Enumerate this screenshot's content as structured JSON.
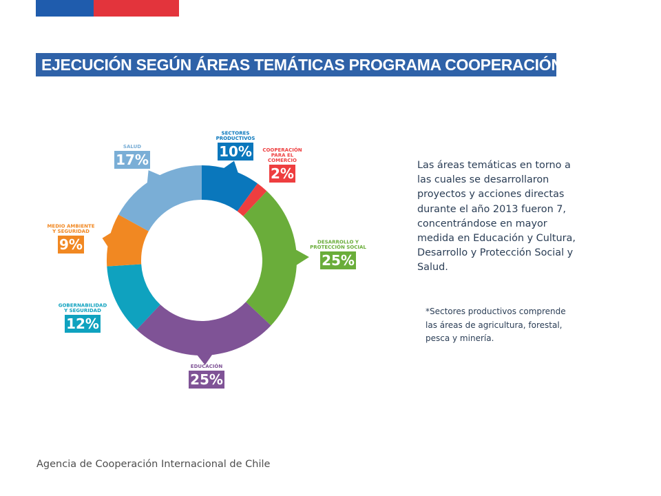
{
  "header": {
    "title": "EJECUCIÓN SEGÚN ÁREAS TEMÁTICAS PROGRAMA COOPERACIÓN SUR-SUR"
  },
  "colors": {
    "flag_blue": "#1f5cad",
    "flag_red": "#e3343c",
    "title_bar": "#2f62a8"
  },
  "chart_data": {
    "type": "pie",
    "style": "donut",
    "title": "",
    "grid": false,
    "legend": "labels around the ring",
    "series": [
      {
        "label_lines": [
          "SECTORES",
          "PRODUCTIVOS"
        ],
        "value": 10,
        "display": "10%",
        "color": "#0a77bc"
      },
      {
        "label_lines": [
          "COOPERACIÓN",
          "PARA EL",
          "COMERCIO"
        ],
        "value": 2,
        "display": "2%",
        "color": "#ee3e3f"
      },
      {
        "label_lines": [
          "DESARROLLO Y",
          "PROTECCIÓN SOCIAL"
        ],
        "value": 25,
        "display": "25%",
        "color": "#6aad3a"
      },
      {
        "label_lines": [
          "EDUCACIÓN"
        ],
        "value": 25,
        "display": "25%",
        "color": "#7f5396"
      },
      {
        "label_lines": [
          "GOBERNABILIDAD",
          "Y SEGURIDAD"
        ],
        "value": 12,
        "display": "12%",
        "color": "#0fa2bf"
      },
      {
        "label_lines": [
          "MEDIO AMBIENTE",
          "Y SEGURIDAD"
        ],
        "value": 9,
        "display": "9%",
        "color": "#f18822"
      },
      {
        "label_lines": [
          "SALUD"
        ],
        "value": 17,
        "display": "17%",
        "color": "#7aaed6"
      }
    ]
  },
  "description": "Las áreas temáticas en torno a las cuales se desarrollaron proyectos y acciones directas durante el año 2013 fueron 7, concentrándose en mayor medida en Educación y Cultura, Desarrollo y Protección Social y Salud.",
  "footnote": "*Sectores productivos comprende las áreas de agricultura, forestal, pesca y minería.",
  "footer": {
    "org": "Agencia de Cooperación Internacional de Chile"
  }
}
